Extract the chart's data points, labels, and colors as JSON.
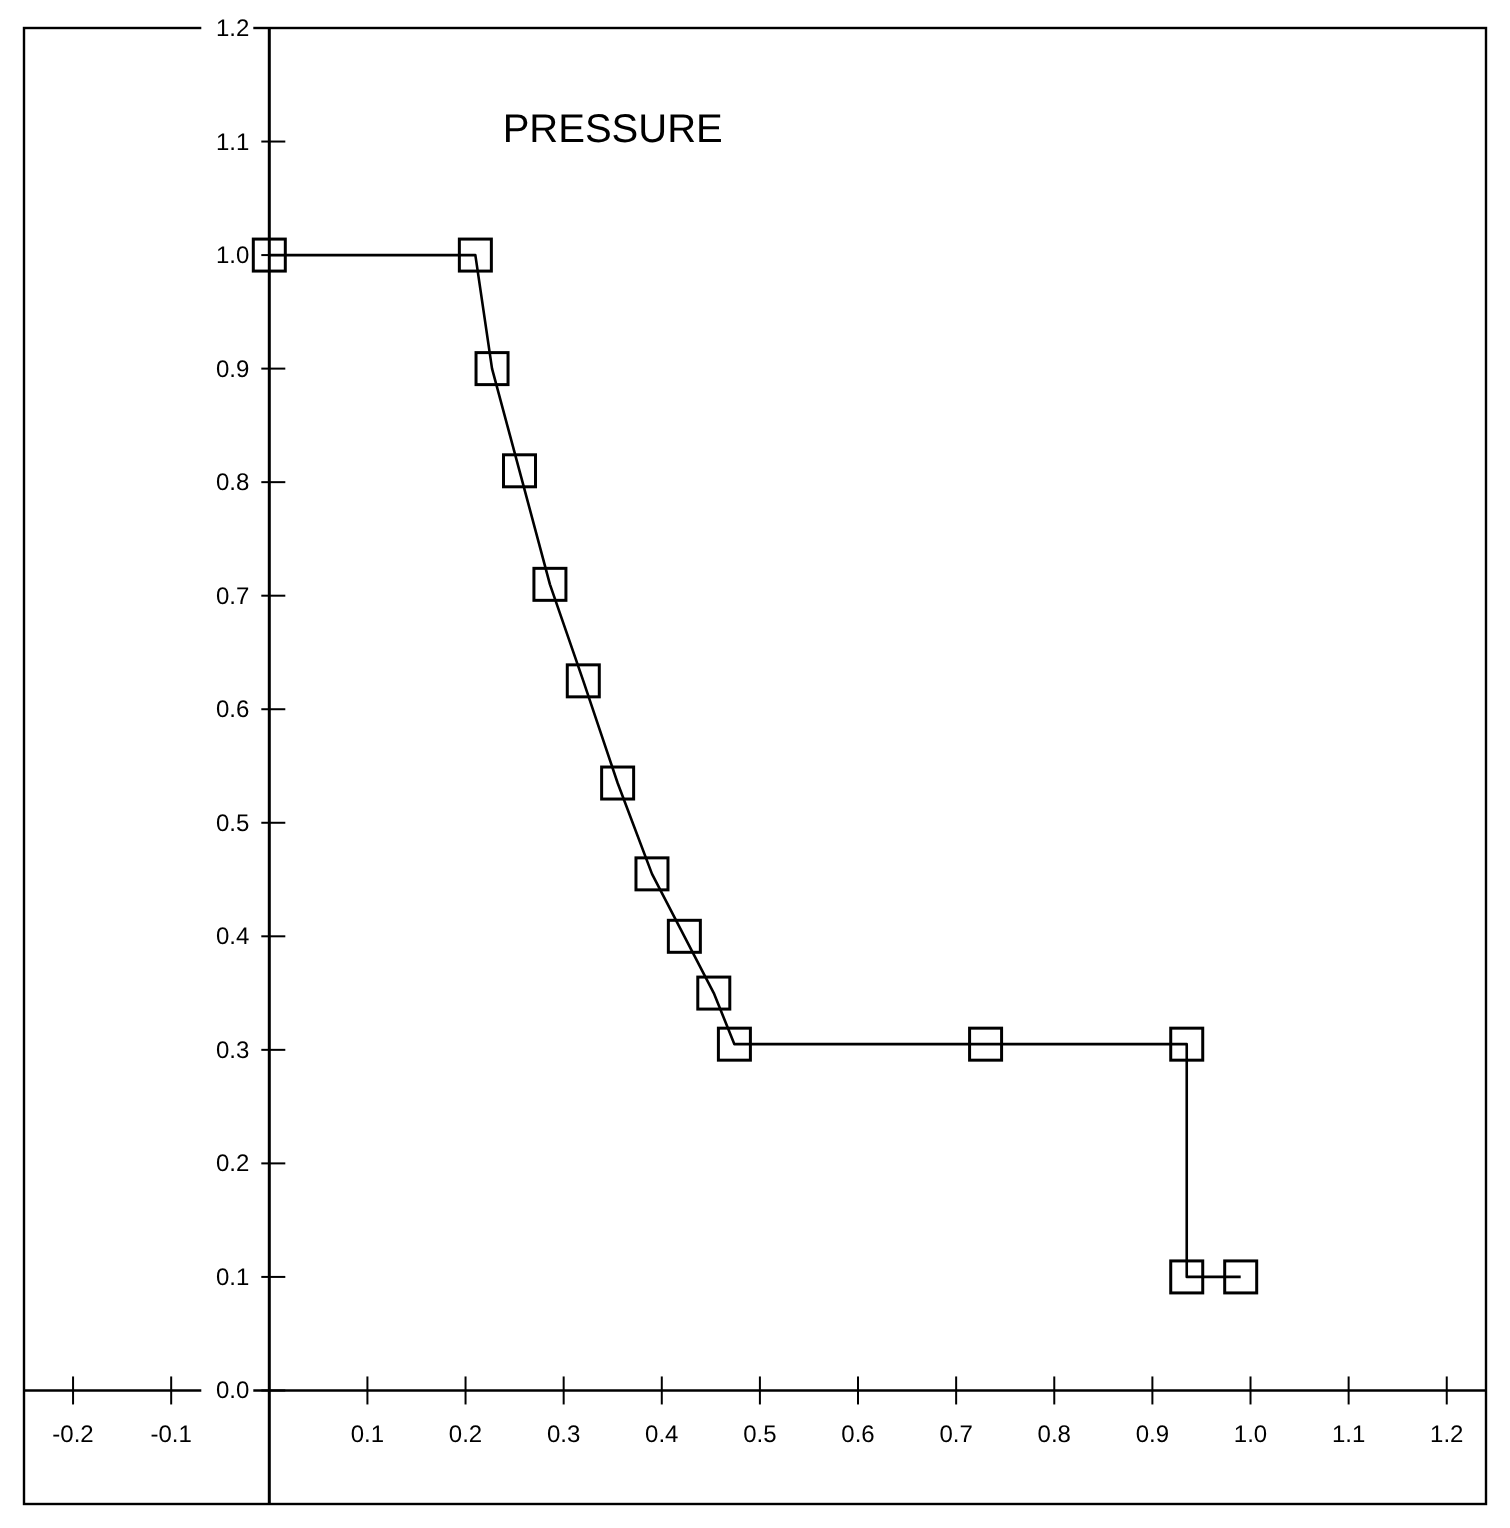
{
  "chart_data": {
    "type": "line",
    "title": "PRESSURE",
    "marker": "square",
    "line_style": "solid",
    "xlim": [
      -0.25,
      1.24
    ],
    "ylim": [
      -0.1,
      1.2
    ],
    "xticks": [
      -0.2,
      -0.1,
      0.1,
      0.2,
      0.3,
      0.4,
      0.5,
      0.6,
      0.7,
      0.8,
      0.9,
      {
        "value": 1,
        "label": "1.0"
      },
      1.1,
      1.2
    ],
    "yticks": [
      {
        "value": 0,
        "label": "0.0"
      },
      0.1,
      0.2,
      0.3,
      0.4,
      0.5,
      0.6,
      0.7,
      0.8,
      0.9,
      {
        "value": 1,
        "label": "1.0"
      },
      1.1,
      1.2
    ],
    "series": [
      {
        "color": "#000000",
        "x": [
          0,
          0.21,
          0.227,
          0.255,
          0.286,
          0.32,
          0.355,
          0.39,
          0.423,
          0.453,
          0.474,
          0.73,
          0.935,
          0.935,
          0.99
        ],
        "values": [
          1.0,
          1.0,
          0.9,
          0.81,
          0.71,
          0.625,
          0.535,
          0.455,
          0.4,
          0.35,
          0.305,
          0.305,
          0.305,
          0.1,
          0.1
        ]
      }
    ]
  }
}
